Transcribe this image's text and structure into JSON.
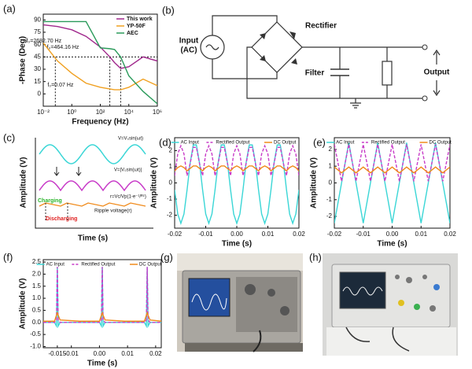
{
  "panel_labels": [
    "(a)",
    "(b)",
    "(c)",
    "(d)",
    "(e)",
    "(f)",
    "(g)",
    "(h)"
  ],
  "circuit": {
    "input": [
      "Input",
      "(AC)"
    ],
    "rectifier": "Rectifier",
    "filter": "Filter",
    "output": "Output"
  },
  "schematic": {
    "ac": "V=V₀sin(ωt)",
    "rectified": "V=|V₀sin(ωt)|",
    "ripple_formula": "r=Vc/Vp(1-e⁻¹/ᴿᶜ)",
    "charging": "Charging",
    "discharging": "Discharging",
    "ripple": "Ripple voltage(r)",
    "ylabel": "Amplitude (V)",
    "xlabel": "Time (s)"
  },
  "chart_data": [
    {
      "type": "line",
      "log_x": true,
      "xlabel": "Frequency (Hz)",
      "ylabel": "-Phase (Deg)",
      "x": [
        0.01,
        0.1,
        1,
        10,
        100,
        464.16,
        1000,
        2682.7,
        10000,
        100000,
        1000000
      ],
      "series": [
        {
          "name": "This work",
          "color": "#a0288c",
          "values": [
            84,
            82,
            78,
            70,
            57,
            45,
            38,
            31,
            33,
            45,
            40
          ]
        },
        {
          "name": "YP-50F",
          "color": "#f0a020",
          "values": [
            62,
            40,
            25,
            13,
            8,
            6,
            5,
            5,
            8,
            18,
            10
          ]
        },
        {
          "name": "AEC",
          "color": "#2a9a5a",
          "values": [
            88,
            88,
            88,
            88,
            56,
            55,
            54,
            45,
            22,
            3,
            -12
          ]
        }
      ],
      "xlim": [
        0.01,
        1000000
      ],
      "ylim": [
        -15,
        97
      ],
      "xticks": [
        {
          "value": 0.01,
          "label": "10⁻²"
        },
        {
          "value": 1,
          "label": "10⁰"
        },
        {
          "value": 100,
          "label": "10²"
        },
        {
          "value": 10000,
          "label": "10⁴"
        },
        {
          "value": 1000000,
          "label": "10⁶"
        }
      ],
      "yticks": [
        0,
        15,
        30,
        45,
        60,
        75,
        90
      ],
      "hline": 45,
      "markers": [
        {
          "x": 2682.7,
          "label": "f₀=2682.70 Hz"
        },
        {
          "x": 464.16,
          "label": "f₀=464.16 Hz"
        },
        {
          "x": 0.07,
          "label": "f₀=0.07 Hz"
        }
      ],
      "legend": "upper right"
    },
    {
      "type": "line",
      "xlabel": "Time (s)",
      "ylabel": "Amplitude (V)",
      "x": [
        -0.02,
        -0.019,
        -0.018,
        -0.017,
        -0.016,
        -0.015,
        -0.014,
        -0.013,
        -0.012,
        -0.011,
        -0.01,
        -0.009,
        -0.008,
        -0.007,
        -0.006,
        -0.005,
        -0.004,
        -0.003,
        -0.002,
        -0.001,
        0,
        0.001,
        0.002,
        0.003,
        0.004,
        0.005,
        0.006,
        0.007,
        0.008,
        0.009,
        0.01,
        0.011,
        0.012,
        0.013,
        0.014,
        0.015,
        0.016,
        0.017,
        0.018,
        0.019,
        0.02
      ],
      "series": [
        {
          "name": "AC Input",
          "color": "#3ad6d6",
          "values": [
            -0.43,
            -1.92,
            -2.5,
            -1.92,
            -0.43,
            1.25,
            2.35,
            2.35,
            1.25,
            -0.43,
            -1.92,
            -2.5,
            -1.92,
            -0.43,
            1.25,
            2.35,
            2.35,
            1.25,
            -0.43,
            -1.92,
            -2.5,
            -1.92,
            -0.43,
            1.25,
            2.35,
            2.35,
            1.25,
            -0.43,
            -1.92,
            -2.5,
            -1.92,
            -0.43,
            1.25,
            2.35,
            2.35,
            1.25,
            -0.43,
            -1.92,
            -2.5,
            -1.92,
            -0.43
          ]
        },
        {
          "name": "Rectified Output",
          "color": "#c83cc8",
          "dash": true,
          "values": [
            0.45,
            1.8,
            2.3,
            1.8,
            0.45,
            1.2,
            2.2,
            2.2,
            1.2,
            0.45,
            1.8,
            2.3,
            1.8,
            0.45,
            1.2,
            2.2,
            2.2,
            1.2,
            0.45,
            1.8,
            2.3,
            1.8,
            0.45,
            1.2,
            2.2,
            2.2,
            1.2,
            0.45,
            1.8,
            2.3,
            1.8,
            0.45,
            1.2,
            2.2,
            2.2,
            1.2,
            0.45,
            1.8,
            2.3,
            1.8,
            0.45
          ]
        },
        {
          "name": "DC Output",
          "color": "#f08a1a",
          "values": [
            0.75,
            0.95,
            1.05,
            0.95,
            0.75,
            0.9,
            1.05,
            1.05,
            0.9,
            0.75,
            0.95,
            1.05,
            0.95,
            0.75,
            0.9,
            1.05,
            1.05,
            0.9,
            0.75,
            0.95,
            1.05,
            0.95,
            0.75,
            0.9,
            1.05,
            1.05,
            0.9,
            0.75,
            0.95,
            1.05,
            0.95,
            0.75,
            0.9,
            1.05,
            1.05,
            0.9,
            0.75,
            0.95,
            1.05,
            0.95,
            0.75
          ]
        }
      ],
      "xlim": [
        -0.02,
        0.02
      ],
      "ylim": [
        -2.8,
        2.8
      ],
      "xticks": [
        -0.02,
        -0.01,
        {
          "value": 0,
          "label": "0.00"
        },
        0.01,
        0.02
      ],
      "yticks": [
        -2,
        -1,
        0,
        1,
        2
      ],
      "legend": "top"
    },
    {
      "type": "line",
      "xlabel": "Time (s)",
      "ylabel": "Amplitude (V)",
      "x": [
        -0.02,
        -0.0175,
        -0.015,
        -0.0125,
        -0.01,
        -0.0075,
        -0.005,
        -0.0025,
        0,
        0.0025,
        0.005,
        0.0075,
        0.01,
        0.0125,
        0.015,
        0.0175,
        0.02
      ],
      "series": [
        {
          "name": "AC Input",
          "color": "#3ad6d6",
          "values": [
            -2.4,
            0,
            2.4,
            0,
            -2.4,
            0,
            2.4,
            0,
            -2.4,
            0,
            2.4,
            0,
            -2.4,
            0,
            2.4,
            0,
            -2.4
          ]
        },
        {
          "name": "Rectified Output",
          "color": "#c83cc8",
          "dash": true,
          "values": [
            2.3,
            0.1,
            2.3,
            0.1,
            2.3,
            0.1,
            2.3,
            0.1,
            2.3,
            0.1,
            2.3,
            0.1,
            2.3,
            0.1,
            2.3,
            0.1,
            2.3
          ]
        },
        {
          "name": "DC Output",
          "color": "#f08a1a",
          "values": [
            0.95,
            0.6,
            0.95,
            0.6,
            0.95,
            0.6,
            0.95,
            0.6,
            0.95,
            0.6,
            0.95,
            0.6,
            0.95,
            0.6,
            0.95,
            0.6,
            0.95
          ]
        }
      ],
      "xlim": [
        -0.02,
        0.02
      ],
      "ylim": [
        -2.7,
        2.7
      ],
      "xticks": [
        -0.02,
        -0.01,
        {
          "value": 0,
          "label": "0.00"
        },
        0.01,
        0.02
      ],
      "yticks": [
        -2,
        -1,
        0,
        1,
        2
      ],
      "legend": "top"
    },
    {
      "type": "line",
      "xlabel": "Time (s)",
      "ylabel": "Amplitude (V)",
      "x": [
        -0.02,
        -0.016,
        -0.0153,
        -0.015,
        -0.0147,
        -0.014,
        -0.007,
        0,
        0.0007,
        0.001,
        0.0013,
        0.002,
        0.009,
        0.016,
        0.0167,
        0.017,
        0.0173,
        0.018,
        0.022
      ],
      "series": [
        {
          "name": "AC Input",
          "color": "#3ad6d6",
          "values": [
            0,
            0,
            -0.15,
            2.3,
            -0.15,
            0,
            0,
            0,
            -0.15,
            2.3,
            -0.15,
            0,
            0,
            0,
            -0.15,
            2.3,
            -0.15,
            0,
            0
          ]
        },
        {
          "name": "Rectified Output",
          "color": "#c83cc8",
          "dash": true,
          "values": [
            0,
            0,
            0.1,
            2.3,
            0.1,
            0,
            0,
            0,
            0.1,
            2.3,
            0.1,
            0,
            0,
            0,
            0.1,
            2.3,
            0.1,
            0,
            0
          ]
        },
        {
          "name": "DC Output",
          "color": "#f08a1a",
          "values": [
            0.05,
            0.05,
            0.3,
            0.4,
            0.3,
            0.1,
            0.05,
            0.05,
            0.3,
            0.4,
            0.3,
            0.1,
            0.05,
            0.05,
            0.3,
            0.4,
            0.3,
            0.1,
            0.05
          ]
        }
      ],
      "xlim": [
        -0.02,
        0.022
      ],
      "ylim": [
        -1.05,
        2.6
      ],
      "xticks": [
        -0.015,
        -0.01,
        {
          "value": 0,
          "label": "0.00"
        },
        0.01,
        0.02
      ],
      "yticks": [
        {
          "value": -1,
          "label": "-1.0"
        },
        -0.5,
        {
          "value": 0,
          "label": "0.0"
        },
        0.5,
        {
          "value": 1,
          "label": "1.0"
        },
        1.5,
        {
          "value": 2,
          "label": "2.0"
        },
        2.5
      ],
      "legend": "top"
    }
  ]
}
